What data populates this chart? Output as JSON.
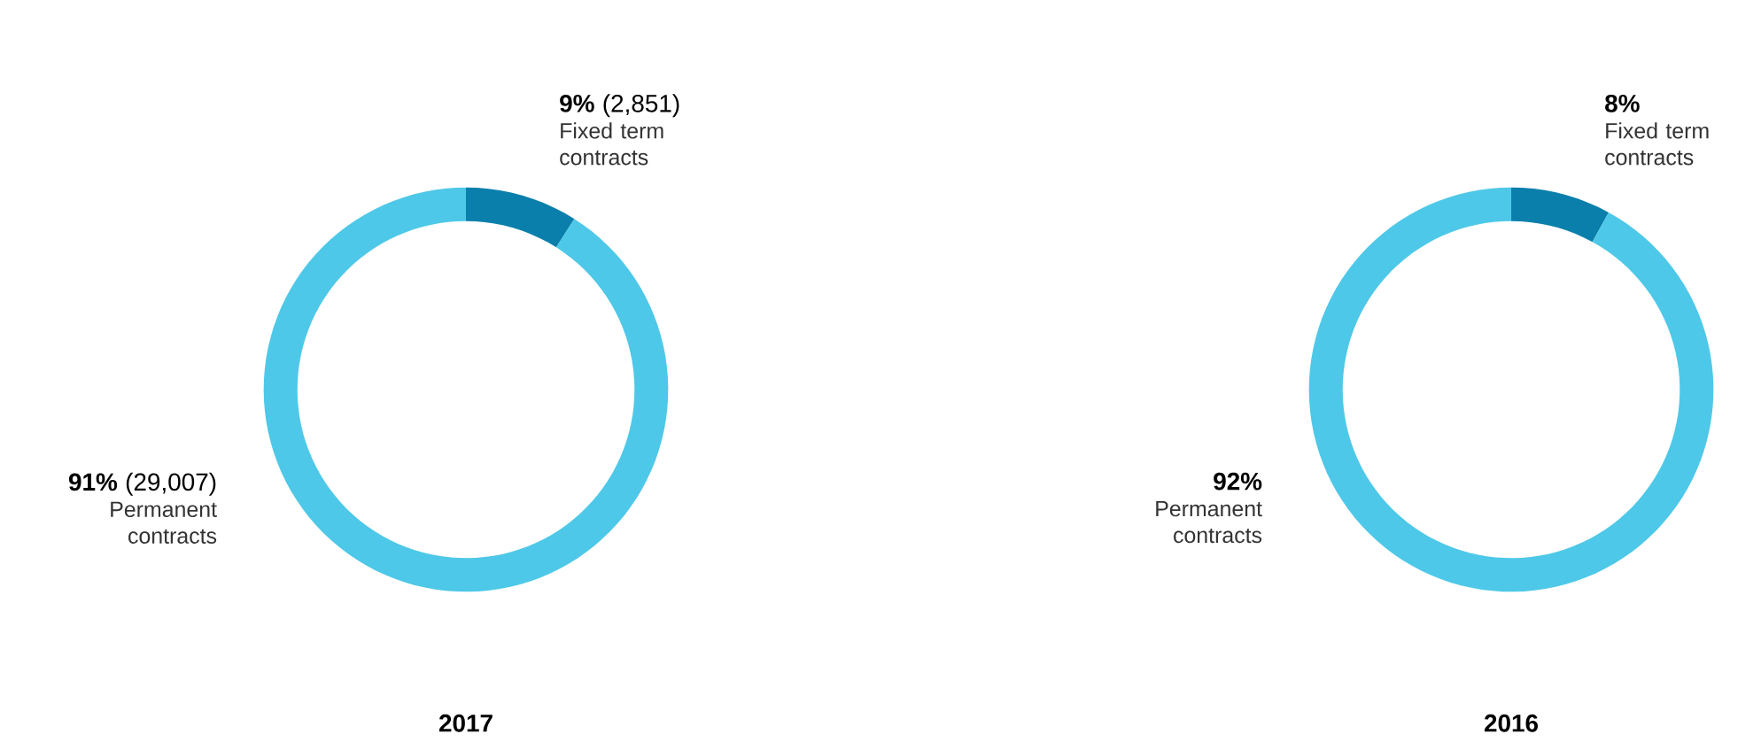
{
  "chart_data": [
    {
      "type": "donut",
      "title": "2017",
      "categories": [
        "Fixed term contracts",
        "Permanent contracts"
      ],
      "values": [
        9,
        91
      ],
      "colors": [
        "#0a7fac",
        "#4ec8e8"
      ],
      "value_labels": [
        "**9%** (2,851)",
        "**91%** (29,007)"
      ]
    },
    {
      "type": "donut",
      "title": "2016",
      "categories": [
        "Fixed term contracts",
        "Permanent contracts"
      ],
      "values": [
        8,
        92
      ],
      "colors": [
        "#0a7fac",
        "#4ec8e8"
      ],
      "value_labels": [
        "**8%**",
        "**92%**"
      ]
    }
  ]
}
